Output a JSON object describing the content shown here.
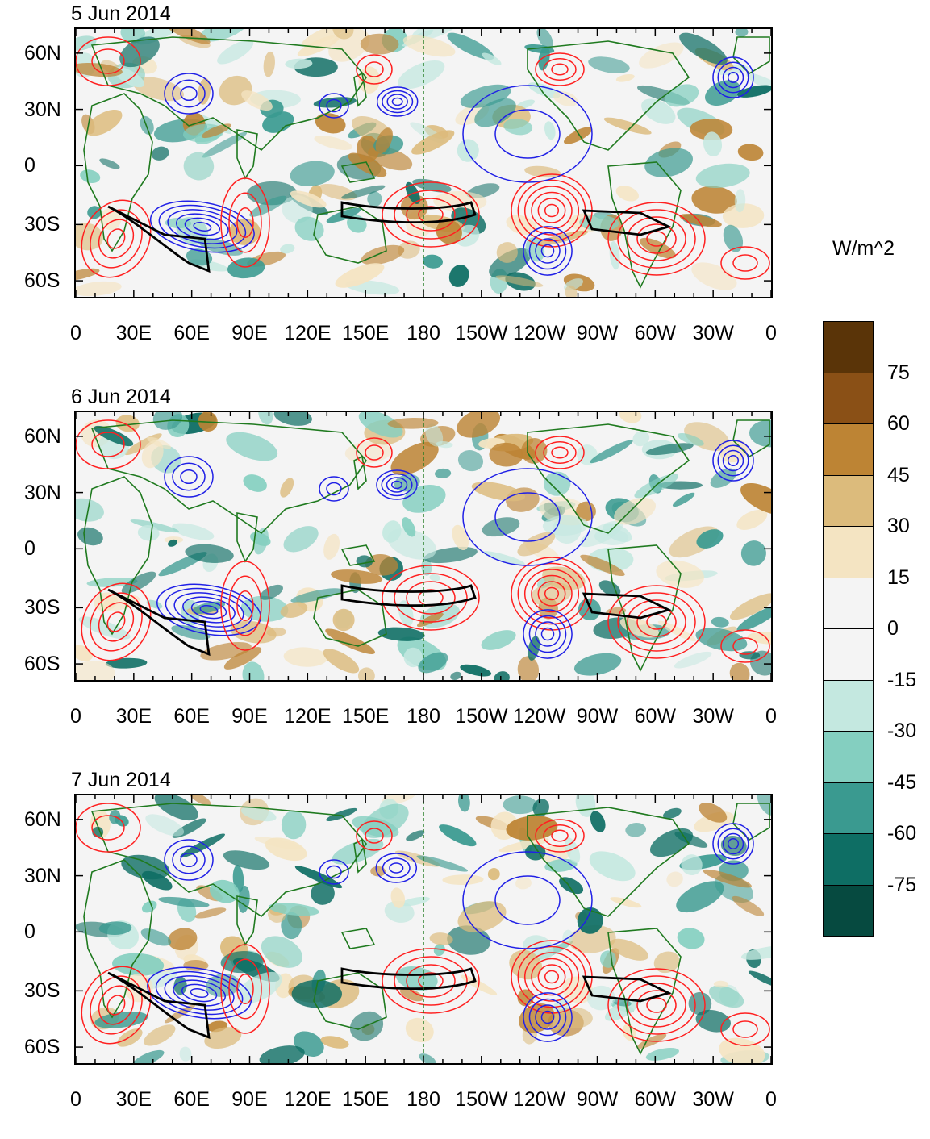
{
  "units": "W/m^2",
  "panels": [
    {
      "title": "5 Jun 2014"
    },
    {
      "title": "6 Jun 2014"
    },
    {
      "title": "7 Jun 2014"
    }
  ],
  "lat_ticks": [
    "60N",
    "30N",
    "0",
    "30S",
    "60S"
  ],
  "lon_ticks": [
    "0",
    "30E",
    "60E",
    "90E",
    "120E",
    "150E",
    "180",
    "150W",
    "120W",
    "90W",
    "60W",
    "30W",
    "0"
  ],
  "colorbar": {
    "levels": [
      "75",
      "60",
      "45",
      "30",
      "15",
      "0",
      "-15",
      "-30",
      "-45",
      "-60",
      "-75"
    ],
    "colors": [
      "#5a3408",
      "#8a5016",
      "#bd8434",
      "#dcbb7c",
      "#f4e4c2",
      "#f4f4f4",
      "#f4f4f4",
      "#c4e8e0",
      "#84cfc0",
      "#3a9a90",
      "#0e6e64",
      "#064a40"
    ]
  },
  "colors": {
    "coast": "#1f7a1f",
    "positive_contour": "#ff2020",
    "negative_contour": "#2020e6",
    "threshold_contour": "#000000",
    "date_line": "#1f7a1f"
  }
}
